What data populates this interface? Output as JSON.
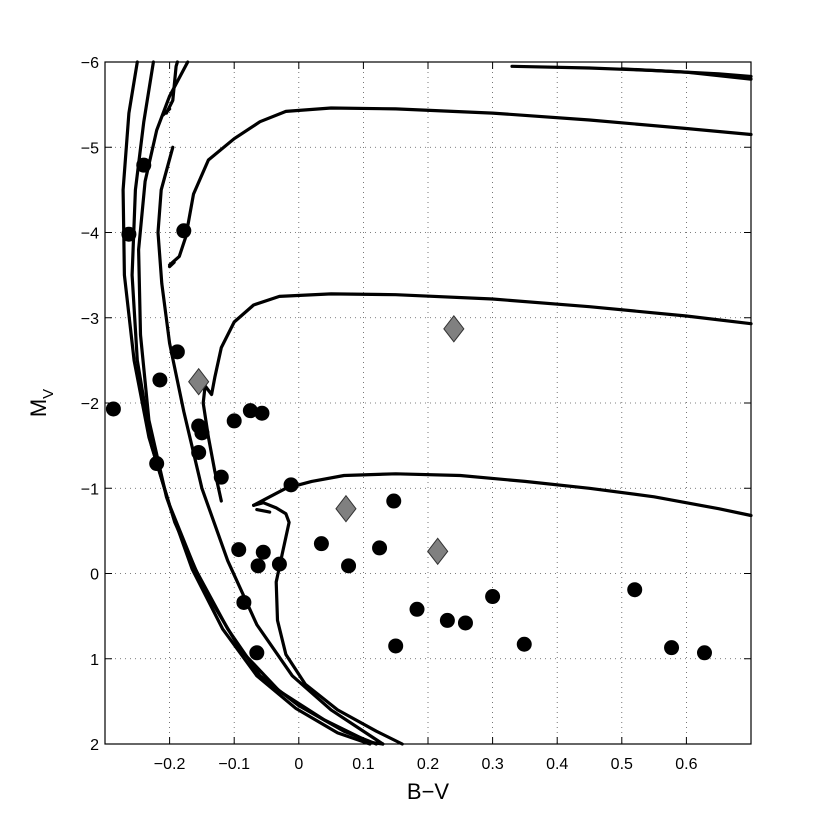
{
  "chart_data": {
    "type": "scatter",
    "title": "",
    "xlabel": "B−V",
    "ylabel_main": "M",
    "ylabel_sub": "V",
    "xlim": [
      -0.3,
      0.7
    ],
    "ylim": [
      -6,
      2
    ],
    "y_inverted": true,
    "grid": "dotted",
    "xticks": [
      -0.2,
      -0.1,
      0,
      0.1,
      0.2,
      0.3,
      0.4,
      0.5,
      0.6
    ],
    "xtick_labels": [
      "−0.2",
      "−0.1",
      "0",
      "0.1",
      "0.2",
      "0.3",
      "0.4",
      "0.5",
      "0.6"
    ],
    "yticks": [
      -6,
      -5,
      -4,
      -3,
      -2,
      -1,
      0,
      1,
      2
    ],
    "ytick_labels": [
      "−6",
      "−5",
      "−4",
      "−3",
      "−2",
      "−1",
      "0",
      "1",
      "2"
    ],
    "colors": {
      "circle": "#000000",
      "diamond": "#808080",
      "curve": "#000000"
    },
    "series": [
      {
        "marker": "circle",
        "points": [
          [
            -0.287,
            -1.93
          ],
          [
            -0.263,
            -3.98
          ],
          [
            -0.24,
            -4.79
          ],
          [
            -0.22,
            -1.29
          ],
          [
            -0.215,
            -2.27
          ],
          [
            -0.188,
            -2.6
          ],
          [
            -0.178,
            -4.02
          ],
          [
            -0.155,
            -1.73
          ],
          [
            -0.155,
            -1.42
          ],
          [
            -0.15,
            -1.65
          ],
          [
            -0.12,
            -1.13
          ],
          [
            -0.1,
            -1.79
          ],
          [
            -0.093,
            -0.28
          ],
          [
            -0.085,
            0.34
          ],
          [
            -0.075,
            -1.91
          ],
          [
            -0.065,
            0.93
          ],
          [
            -0.063,
            -0.09
          ],
          [
            -0.057,
            -1.88
          ],
          [
            -0.055,
            -0.25
          ],
          [
            -0.03,
            -0.11
          ],
          [
            -0.012,
            -1.04
          ],
          [
            0.035,
            -0.35
          ],
          [
            0.077,
            -0.09
          ],
          [
            0.125,
            -0.3
          ],
          [
            0.147,
            -0.85
          ],
          [
            0.15,
            0.85
          ],
          [
            0.183,
            0.42
          ],
          [
            0.23,
            0.55
          ],
          [
            0.258,
            0.58
          ],
          [
            0.3,
            0.27
          ],
          [
            0.349,
            0.83
          ],
          [
            0.52,
            0.19
          ],
          [
            0.577,
            0.87
          ],
          [
            0.628,
            0.93
          ]
        ]
      },
      {
        "marker": "diamond",
        "points": [
          [
            -0.155,
            -2.25
          ],
          [
            0.073,
            -0.76
          ],
          [
            0.215,
            -0.26
          ],
          [
            0.24,
            -2.87
          ]
        ]
      }
    ],
    "curves": [
      [
        [
          -0.25,
          -6.0
        ],
        [
          -0.263,
          -5.4
        ],
        [
          -0.272,
          -4.5
        ],
        [
          -0.27,
          -3.5
        ],
        [
          -0.255,
          -2.5
        ],
        [
          -0.232,
          -1.6
        ],
        [
          -0.2,
          -0.8
        ],
        [
          -0.16,
          -0.05
        ],
        [
          -0.11,
          0.65
        ],
        [
          -0.06,
          1.2
        ],
        [
          0.0,
          1.55
        ],
        [
          0.07,
          1.85
        ],
        [
          0.12,
          2.0
        ]
      ],
      [
        [
          -0.225,
          -6.0
        ],
        [
          -0.24,
          -5.3
        ],
        [
          -0.253,
          -4.5
        ],
        [
          -0.258,
          -3.5
        ],
        [
          -0.25,
          -2.5
        ],
        [
          -0.228,
          -1.5
        ],
        [
          -0.192,
          -0.6
        ],
        [
          -0.145,
          0.2
        ],
        [
          -0.09,
          0.9
        ],
        [
          -0.03,
          1.38
        ],
        [
          0.04,
          1.72
        ],
        [
          0.11,
          1.98
        ],
        [
          0.13,
          2.0
        ]
      ],
      [
        [
          -0.205,
          -5.4
        ],
        [
          -0.195,
          -5.55
        ],
        [
          -0.19,
          -5.95
        ],
        [
          -0.188,
          -6.0
        ]
      ],
      [
        [
          -0.2,
          -5.45
        ],
        [
          -0.21,
          -5.38
        ]
      ],
      [
        [
          -0.195,
          -5.0
        ],
        [
          -0.213,
          -4.5
        ],
        [
          -0.218,
          -4.0
        ],
        [
          -0.212,
          -3.4
        ],
        [
          -0.2,
          -2.7
        ],
        [
          -0.178,
          -1.9
        ],
        [
          -0.15,
          -1.0
        ],
        [
          -0.11,
          -0.15
        ],
        [
          -0.065,
          0.6
        ],
        [
          -0.01,
          1.2
        ],
        [
          0.05,
          1.6
        ],
        [
          0.11,
          1.9
        ],
        [
          0.13,
          2.0
        ]
      ],
      [
        [
          -0.172,
          -6.0
        ],
        [
          -0.2,
          -5.6
        ],
        [
          -0.22,
          -5.2
        ],
        [
          -0.238,
          -4.6
        ],
        [
          -0.248,
          -3.8
        ],
        [
          -0.245,
          -2.8
        ],
        [
          -0.232,
          -1.8
        ],
        [
          -0.205,
          -0.9
        ],
        [
          -0.165,
          -0.05
        ],
        [
          -0.118,
          0.65
        ],
        [
          -0.065,
          1.2
        ],
        [
          -0.005,
          1.58
        ],
        [
          0.06,
          1.87
        ],
        [
          0.11,
          2.0
        ]
      ],
      [
        [
          -0.2,
          -3.62
        ],
        [
          -0.185,
          -3.72
        ],
        [
          -0.175,
          -3.95
        ],
        [
          -0.163,
          -4.45
        ],
        [
          -0.14,
          -4.85
        ],
        [
          -0.1,
          -5.1
        ],
        [
          -0.06,
          -5.3
        ],
        [
          -0.02,
          -5.42
        ],
        [
          0.05,
          -5.46
        ],
        [
          0.15,
          -5.45
        ],
        [
          0.3,
          -5.4
        ],
        [
          0.45,
          -5.32
        ],
        [
          0.6,
          -5.22
        ],
        [
          0.7,
          -5.15
        ]
      ],
      [
        [
          -0.2,
          -3.6
        ],
        [
          -0.193,
          -3.65
        ]
      ],
      [
        [
          -0.12,
          -0.85
        ],
        [
          -0.13,
          -1.2
        ],
        [
          -0.14,
          -1.6
        ],
        [
          -0.148,
          -2.0
        ],
        [
          -0.145,
          -2.2
        ],
        [
          -0.135,
          -2.1
        ],
        [
          -0.13,
          -2.3
        ],
        [
          -0.12,
          -2.65
        ],
        [
          -0.1,
          -2.95
        ],
        [
          -0.07,
          -3.15
        ],
        [
          -0.03,
          -3.25
        ],
        [
          0.05,
          -3.28
        ],
        [
          0.15,
          -3.27
        ],
        [
          0.3,
          -3.22
        ],
        [
          0.45,
          -3.13
        ],
        [
          0.6,
          -3.02
        ],
        [
          0.7,
          -2.93
        ]
      ],
      [
        [
          -0.07,
          -0.8
        ],
        [
          -0.055,
          -0.83
        ],
        [
          -0.035,
          -0.77
        ],
        [
          -0.02,
          -0.7
        ],
        [
          -0.015,
          -0.6
        ],
        [
          -0.025,
          -0.25
        ],
        [
          -0.035,
          0.1
        ],
        [
          -0.033,
          0.55
        ],
        [
          -0.02,
          0.95
        ],
        [
          0.01,
          1.3
        ],
        [
          0.06,
          1.6
        ],
        [
          0.12,
          1.85
        ],
        [
          0.16,
          2.0
        ]
      ],
      [
        [
          -0.07,
          -0.8
        ],
        [
          -0.045,
          -0.9
        ],
        [
          -0.02,
          -1.0
        ],
        [
          0.02,
          -1.08
        ],
        [
          0.07,
          -1.15
        ],
        [
          0.15,
          -1.17
        ],
        [
          0.25,
          -1.15
        ],
        [
          0.35,
          -1.08
        ],
        [
          0.45,
          -1.0
        ],
        [
          0.55,
          -0.9
        ],
        [
          0.65,
          -0.76
        ],
        [
          0.7,
          -0.68
        ]
      ],
      [
        [
          -0.065,
          -0.75
        ],
        [
          -0.045,
          -0.72
        ]
      ],
      [
        [
          0.33,
          -5.95
        ],
        [
          0.45,
          -5.93
        ],
        [
          0.55,
          -5.9
        ],
        [
          0.65,
          -5.86
        ],
        [
          0.7,
          -5.83
        ]
      ],
      [
        [
          0.5,
          -5.92
        ],
        [
          0.6,
          -5.88
        ],
        [
          0.7,
          -5.8
        ]
      ]
    ]
  }
}
